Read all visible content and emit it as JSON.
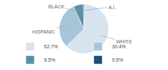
{
  "chart_data": {
    "type": "pie",
    "categories": [
      "WHITE",
      "HISPANIC",
      "BLACK",
      "A.I."
    ],
    "values": [
      62.7,
      30.4,
      6.5,
      0.5
    ],
    "value_labels": [
      "62.7%",
      "30.4%",
      "6.5%",
      "0.5%"
    ],
    "colors": [
      "#d6e4f0",
      "#a8c4d8",
      "#5b8fa8",
      "#1f4e79"
    ],
    "legend": "bottom"
  }
}
